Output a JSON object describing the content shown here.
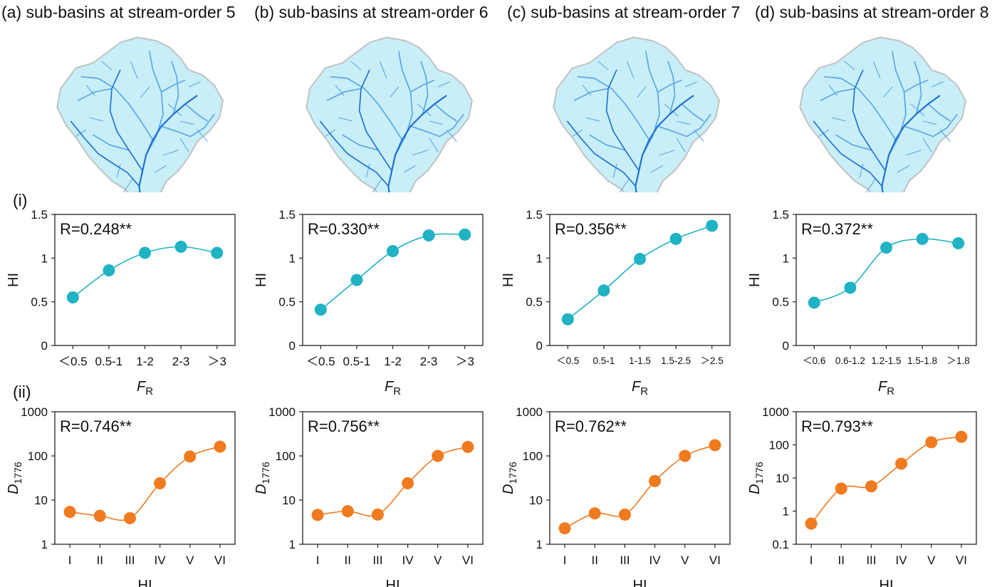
{
  "panels": [
    {
      "letter": "(a)",
      "title": "sub-basins at stream-order 5"
    },
    {
      "letter": "(b)",
      "title": "sub-basins at stream-order 6"
    },
    {
      "letter": "(c)",
      "title": "sub-basins at stream-order 7"
    },
    {
      "letter": "(d)",
      "title": "sub-basins at stream-order 8"
    }
  ],
  "row_labels": [
    "(i)",
    "(ii)"
  ],
  "map_colors": {
    "fill": "#c8eef7",
    "outline": "#c0c0c0",
    "river": "#1f6fd1",
    "river_light": "#5aa7e6"
  },
  "chart_data": [
    {
      "type": "line",
      "row": "i",
      "panel": "a",
      "annotation": "R=0.248**",
      "categories": [
        "＜0.5",
        "0.5-1",
        "1-2",
        "2-3",
        "＞3"
      ],
      "values": [
        0.55,
        0.86,
        1.06,
        1.13,
        1.06
      ],
      "ylim": [
        0,
        1.5
      ],
      "yticks": [
        "0",
        "0.5",
        "1",
        "1.5"
      ],
      "ylabel": "HI",
      "xlabel": "F",
      "xlabel_sub": "R",
      "color": "#1fb3c4",
      "grid": false
    },
    {
      "type": "line",
      "row": "i",
      "panel": "b",
      "annotation": "R=0.330**",
      "categories": [
        "＜0.5",
        "0.5-1",
        "1-2",
        "2-3",
        "＞3"
      ],
      "values": [
        0.41,
        0.75,
        1.08,
        1.26,
        1.27
      ],
      "ylim": [
        0,
        1.5
      ],
      "yticks": [
        "0",
        "0.5",
        "1",
        "1.5"
      ],
      "ylabel": "HI",
      "xlabel": "F",
      "xlabel_sub": "R",
      "color": "#1fb3c4",
      "grid": false
    },
    {
      "type": "line",
      "row": "i",
      "panel": "c",
      "annotation": "R=0.356**",
      "categories": [
        "＜0.5",
        "0.5-1",
        "1-1.5",
        "1.5-2.5",
        "＞2.5"
      ],
      "values": [
        0.3,
        0.63,
        0.99,
        1.22,
        1.37
      ],
      "ylim": [
        0,
        1.5
      ],
      "yticks": [
        "0",
        "0.5",
        "1",
        "1.5"
      ],
      "ylabel": "HI",
      "xlabel": "F",
      "xlabel_sub": "R",
      "color": "#1fb3c4",
      "grid": false
    },
    {
      "type": "line",
      "row": "i",
      "panel": "d",
      "annotation": "R=0.372**",
      "categories": [
        "＜0.6",
        "0.6-1.2",
        "1.2-1.5",
        "1.5-1.8",
        "＞1.8"
      ],
      "values": [
        0.49,
        0.66,
        1.12,
        1.22,
        1.17
      ],
      "ylim": [
        0,
        1.5
      ],
      "yticks": [
        "0",
        "0.5",
        "1",
        "1.5"
      ],
      "ylabel": "HI",
      "xlabel": "F",
      "xlabel_sub": "R",
      "color": "#1fb3c4",
      "grid": false
    },
    {
      "type": "line",
      "row": "ii",
      "panel": "a",
      "annotation": "R=0.746**",
      "scale": "log",
      "categories": [
        "I",
        "II",
        "III",
        "IV",
        "V",
        "VI"
      ],
      "values": [
        5.4,
        4.4,
        3.9,
        24,
        97,
        162
      ],
      "ylim": [
        1,
        1000
      ],
      "yticks": [
        "1",
        "10",
        "100",
        "1000"
      ],
      "ylabel": "D",
      "ylabel_sub": "1776",
      "xlabel": "HI",
      "color": "#f07a1e",
      "grid": false
    },
    {
      "type": "line",
      "row": "ii",
      "panel": "b",
      "annotation": "R=0.756**",
      "scale": "log",
      "categories": [
        "I",
        "II",
        "III",
        "IV",
        "V",
        "VI"
      ],
      "values": [
        4.6,
        5.6,
        4.7,
        24,
        100,
        160
      ],
      "ylim": [
        1,
        1000
      ],
      "yticks": [
        "1",
        "10",
        "100",
        "1000"
      ],
      "ylabel": "D",
      "ylabel_sub": "1776",
      "xlabel": "HI",
      "color": "#f07a1e",
      "grid": false
    },
    {
      "type": "line",
      "row": "ii",
      "panel": "c",
      "annotation": "R=0.762**",
      "scale": "log",
      "categories": [
        "I",
        "II",
        "III",
        "IV",
        "V",
        "VI"
      ],
      "values": [
        2.3,
        5.0,
        4.7,
        27,
        100,
        175
      ],
      "ylim": [
        1,
        1000
      ],
      "yticks": [
        "1",
        "10",
        "100",
        "1000"
      ],
      "ylabel": "D",
      "ylabel_sub": "1776",
      "xlabel": "HI",
      "color": "#f07a1e",
      "grid": false
    },
    {
      "type": "line",
      "row": "ii",
      "panel": "d",
      "annotation": "R=0.793**",
      "scale": "log",
      "categories": [
        "I",
        "II",
        "III",
        "IV",
        "V",
        "VI"
      ],
      "values": [
        0.42,
        4.8,
        5.6,
        27,
        120,
        175
      ],
      "ylim": [
        0.1,
        1000
      ],
      "yticks": [
        "0.1",
        "1",
        "10",
        "100",
        "1000"
      ],
      "ylabel": "D",
      "ylabel_sub": "1776",
      "xlabel": "HI",
      "color": "#f07a1e",
      "grid": false
    }
  ]
}
